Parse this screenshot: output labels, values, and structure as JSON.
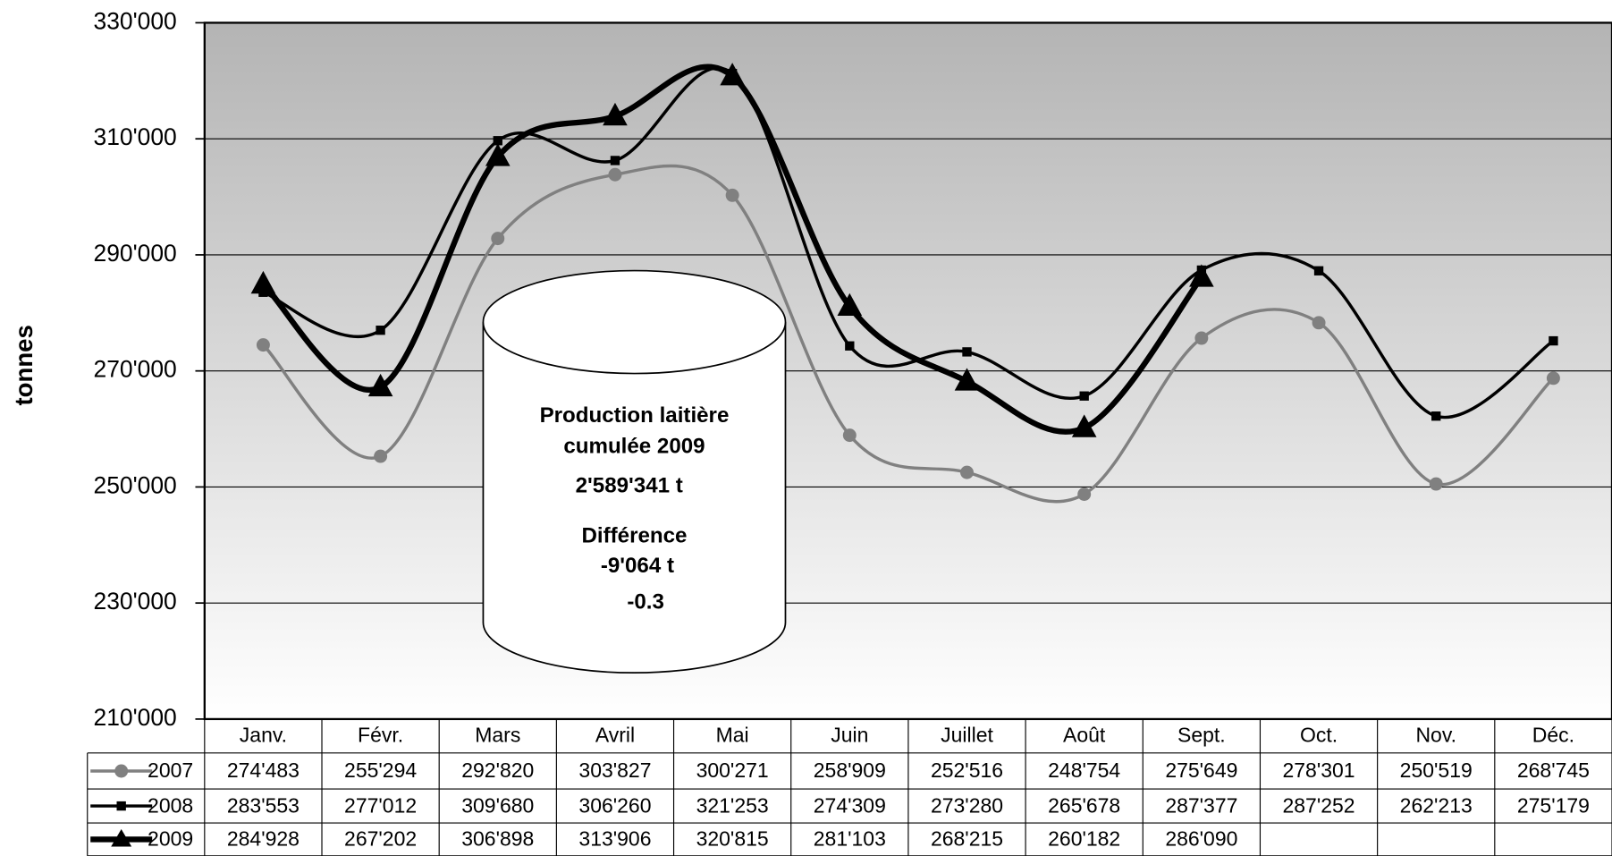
{
  "chart_data": {
    "type": "line",
    "y_label": "tonnes",
    "categories": [
      "Janv.",
      "Févr.",
      "Mars",
      "Avril",
      "Mai",
      "Juin",
      "Juillet",
      "Août",
      "Sept.",
      "Oct.",
      "Nov.",
      "Déc."
    ],
    "ylim": [
      210000,
      330000
    ],
    "yticks": [
      {
        "value": 210000,
        "label": "210'000"
      },
      {
        "value": 230000,
        "label": "230'000"
      },
      {
        "value": 250000,
        "label": "250'000"
      },
      {
        "value": 270000,
        "label": "270'000"
      },
      {
        "value": 290000,
        "label": "290'000"
      },
      {
        "value": 310000,
        "label": "310'000"
      },
      {
        "value": 330000,
        "label": "330'000"
      }
    ],
    "grid": true,
    "series": [
      {
        "name": "2007",
        "color": "#808080",
        "marker": "circle",
        "values": [
          274483,
          255294,
          292820,
          303827,
          300271,
          258909,
          252516,
          248754,
          275649,
          278301,
          250519,
          268745
        ],
        "value_labels": [
          "274'483",
          "255'294",
          "292'820",
          "303'827",
          "300'271",
          "258'909",
          "252'516",
          "248'754",
          "275'649",
          "278'301",
          "250'519",
          "268'745"
        ]
      },
      {
        "name": "2008",
        "color": "#000000",
        "marker": "square",
        "values": [
          283553,
          277012,
          309680,
          306260,
          321253,
          274309,
          273280,
          265678,
          287377,
          287252,
          262213,
          275179
        ],
        "value_labels": [
          "283'553",
          "277'012",
          "309'680",
          "306'260",
          "321'253",
          "274'309",
          "273'280",
          "265'678",
          "287'377",
          "287'252",
          "262'213",
          "275'179"
        ]
      },
      {
        "name": "2009",
        "color": "#000000",
        "marker": "triangle",
        "values": [
          284928,
          267202,
          306898,
          313906,
          320815,
          281103,
          268215,
          260182,
          286090,
          null,
          null,
          null
        ],
        "value_labels": [
          "284'928",
          "267'202",
          "306'898",
          "313'906",
          "320'815",
          "281'103",
          "268'215",
          "260'182",
          "286'090",
          null,
          null,
          null
        ]
      }
    ],
    "annotations": [
      "Production laitière",
      "cumulée 2009",
      "2'589'341 t",
      "Différence",
      "-9'064 t",
      "-0.3"
    ]
  }
}
